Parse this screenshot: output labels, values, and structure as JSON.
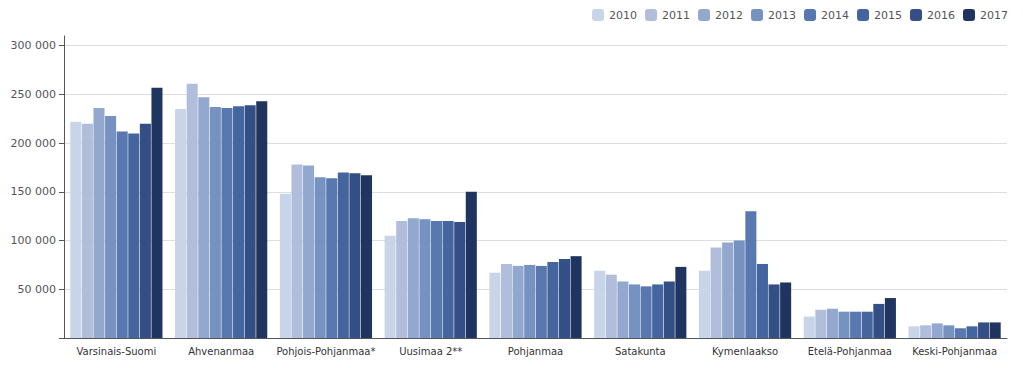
{
  "chart_data": {
    "type": "bar",
    "categories": [
      "Varsinais-Suomi",
      "Ahvenanmaa",
      "Pohjois-Pohjanmaa*",
      "Uusimaa 2**",
      "Pohjanmaa",
      "Satakunta",
      "Kymenlaakso",
      "Etelä-Pohjanmaa",
      "Keski-Pohjanmaa"
    ],
    "series": [
      {
        "name": "2010",
        "color": "#c8d4e8",
        "values": [
          222000,
          235000,
          148000,
          105000,
          67000,
          69000,
          69000,
          22000,
          12000
        ]
      },
      {
        "name": "2011",
        "color": "#b0bedb",
        "values": [
          220000,
          261000,
          178000,
          120000,
          76000,
          65000,
          93000,
          29000,
          13000
        ]
      },
      {
        "name": "2012",
        "color": "#92a8ce",
        "values": [
          236000,
          247000,
          177000,
          123000,
          74000,
          58000,
          98000,
          30000,
          15000
        ]
      },
      {
        "name": "2013",
        "color": "#7592c0",
        "values": [
          228000,
          237000,
          165000,
          122000,
          75000,
          55000,
          100000,
          27000,
          13000
        ]
      },
      {
        "name": "2014",
        "color": "#5878af",
        "values": [
          212000,
          236000,
          164000,
          120000,
          74000,
          53000,
          130000,
          27000,
          10000
        ]
      },
      {
        "name": "2015",
        "color": "#45659f",
        "values": [
          210000,
          238000,
          170000,
          120000,
          78000,
          55000,
          76000,
          27000,
          12000
        ]
      },
      {
        "name": "2016",
        "color": "#344f85",
        "values": [
          220000,
          239000,
          169000,
          119000,
          81000,
          58000,
          55000,
          35000,
          16000
        ]
      },
      {
        "name": "2017",
        "color": "#1f3560",
        "values": [
          257000,
          243000,
          167000,
          150000,
          84000,
          73000,
          57000,
          41000,
          16000
        ]
      }
    ],
    "ylim": [
      0,
      310000
    ],
    "yticks": [
      {
        "value": 0,
        "label": ""
      },
      {
        "value": 50000,
        "label": "50 000"
      },
      {
        "value": 100000,
        "label": "100 000"
      },
      {
        "value": 150000,
        "label": "150 000"
      },
      {
        "value": 200000,
        "label": "200 000"
      },
      {
        "value": 250000,
        "label": "250 000"
      },
      {
        "value": 300000,
        "label": "300 000"
      }
    ],
    "grid": true,
    "legend": "upper right"
  }
}
